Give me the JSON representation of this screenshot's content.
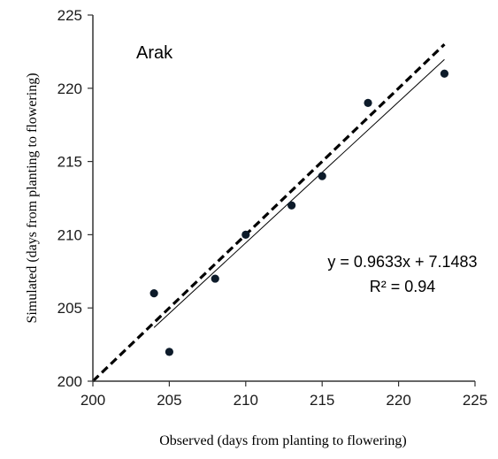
{
  "chart_data": {
    "type": "scatter",
    "title": "",
    "panel_label": "Arak",
    "xlabel": "Observed (days from planting  to flowering)",
    "ylabel": "Simulated  (days from planting to flowering)",
    "xlim": [
      200,
      225
    ],
    "ylim": [
      200,
      225
    ],
    "x_ticks": [
      200,
      205,
      210,
      215,
      220,
      225
    ],
    "y_ticks": [
      200,
      205,
      210,
      215,
      220,
      225
    ],
    "x_tick_labels": [
      "200",
      "205",
      "210",
      "215",
      "220",
      "225"
    ],
    "y_tick_labels": [
      "200",
      "205",
      "210",
      "215",
      "220",
      "225"
    ],
    "grid": false,
    "points": [
      {
        "x": 204,
        "y": 206
      },
      {
        "x": 205,
        "y": 202
      },
      {
        "x": 208,
        "y": 207
      },
      {
        "x": 210,
        "y": 210
      },
      {
        "x": 213,
        "y": 212
      },
      {
        "x": 215,
        "y": 214
      },
      {
        "x": 218,
        "y": 219
      },
      {
        "x": 223,
        "y": 221
      }
    ],
    "one_to_one_line": {
      "x": [
        200,
        223
      ],
      "y": [
        200,
        223
      ],
      "style": "dashed"
    },
    "fit_line": {
      "slope": 0.9633,
      "intercept": 7.1483,
      "x_range": [
        204,
        223
      ],
      "style": "solid"
    },
    "equation": "y = 0.9633x + 7.1483",
    "r_squared": "R² = 0.94",
    "colors": {
      "points": "#0d1b2a",
      "lines": "#000000",
      "axis": "#333333"
    }
  }
}
